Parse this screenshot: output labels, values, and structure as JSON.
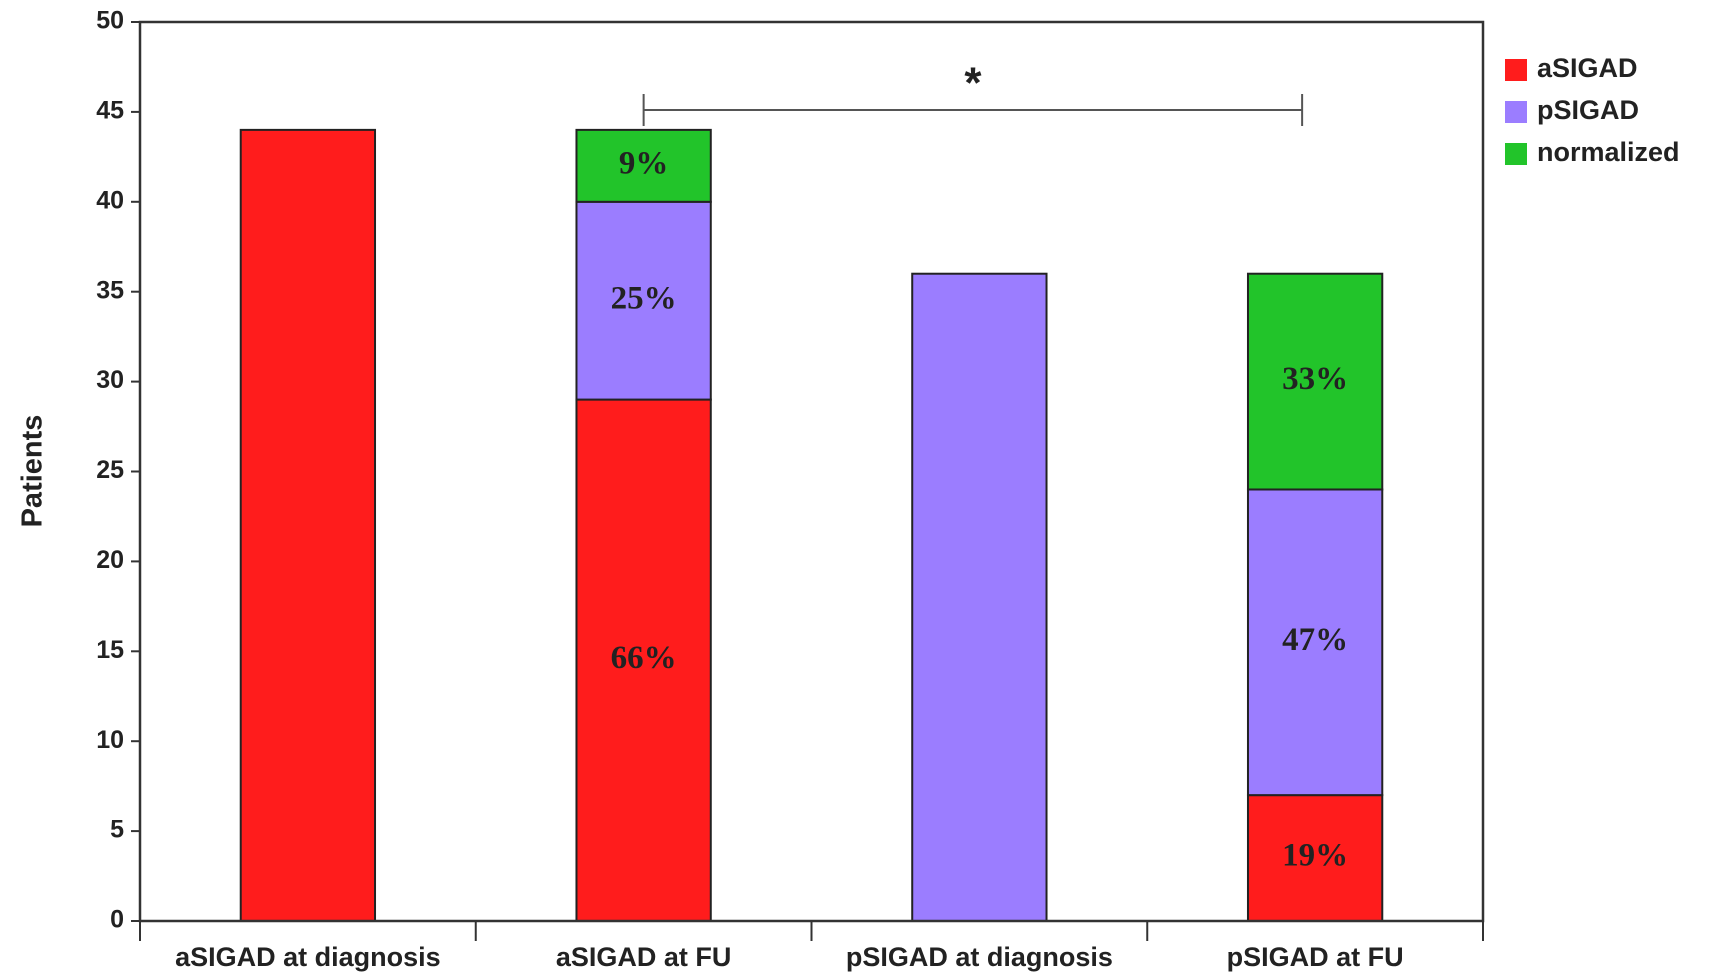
{
  "chart_data": {
    "type": "stacked_bar",
    "y_label": "Patients",
    "annotation": "*",
    "categories": [
      "aSIGAD at diagnosis",
      "aSIGAD at FU",
      "pSIGAD at diagnosis",
      "pSIGAD at FU"
    ],
    "series": [
      {
        "name": "aSIGAD",
        "color": "#ff1c1c",
        "values": [
          44,
          29,
          0,
          7
        ],
        "share_labels": [
          null,
          "66%",
          null,
          "19%"
        ]
      },
      {
        "name": "pSIGAD",
        "color": "#9b7dff",
        "values": [
          0,
          11,
          36,
          17
        ],
        "share_labels": [
          null,
          "25%",
          null,
          "47%"
        ]
      },
      {
        "name": "normalized",
        "color": "#22c42a",
        "values": [
          0,
          4,
          0,
          12
        ],
        "share_labels": [
          null,
          "9%",
          null,
          "33%"
        ]
      }
    ],
    "ylim": [
      0,
      50
    ],
    "yticks": [
      0,
      5,
      10,
      15,
      20,
      25,
      30,
      35,
      40,
      45,
      50
    ],
    "legend": "right"
  }
}
